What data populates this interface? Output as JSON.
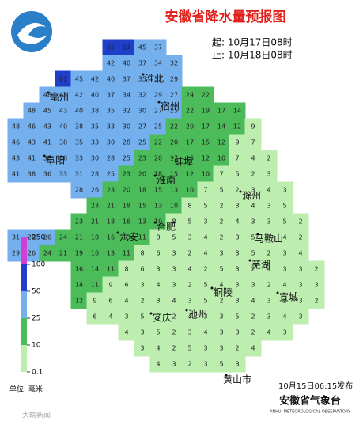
{
  "header": {
    "title": "安徽省降水量预报图",
    "start": "起: 10月17日08时",
    "end": "止: 10月18日08时"
  },
  "legend": {
    "stops": [
      0.1,
      10,
      25,
      50,
      100,
      250
    ],
    "colors": [
      "#bdeeb0",
      "#4cbb5a",
      "#74b0ee",
      "#1f3fc9",
      "#d23fd6"
    ],
    "unit": "单位: 毫米"
  },
  "grid": {
    "rows": [
      [
        null,
        null,
        null,
        null,
        null,
        null,
        65,
        57,
        45,
        37,
        null,
        null,
        null,
        null,
        null,
        null,
        null,
        null,
        null,
        null
      ],
      [
        null,
        null,
        null,
        null,
        null,
        null,
        42,
        40,
        37,
        34,
        32,
        null,
        null,
        null,
        null,
        null,
        null,
        null,
        null,
        null
      ],
      [
        null,
        null,
        null,
        61,
        45,
        42,
        40,
        37,
        35,
        32,
        29,
        null,
        null,
        null,
        null,
        null,
        null,
        null,
        null,
        null
      ],
      [
        null,
        null,
        48,
        45,
        42,
        40,
        37,
        34,
        32,
        29,
        27,
        24,
        22,
        null,
        null,
        null,
        null,
        null,
        null,
        null
      ],
      [
        null,
        48,
        45,
        43,
        40,
        38,
        35,
        32,
        30,
        27,
        25,
        22,
        19,
        17,
        14,
        null,
        null,
        null,
        null,
        null
      ],
      [
        48,
        46,
        43,
        40,
        38,
        35,
        33,
        30,
        27,
        25,
        22,
        20,
        17,
        14,
        12,
        9,
        null,
        null,
        null,
        null
      ],
      [
        46,
        43,
        41,
        38,
        35,
        33,
        30,
        28,
        25,
        22,
        20,
        17,
        15,
        12,
        9,
        7,
        null,
        null,
        null,
        null
      ],
      [
        43,
        41,
        38,
        36,
        33,
        30,
        28,
        25,
        23,
        20,
        17,
        15,
        12,
        10,
        7,
        4,
        2,
        null,
        null,
        null
      ],
      [
        41,
        38,
        36,
        33,
        31,
        28,
        25,
        23,
        20,
        18,
        15,
        12,
        10,
        7,
        5,
        2,
        3,
        null,
        null,
        null
      ],
      [
        null,
        null,
        null,
        null,
        28,
        26,
        23,
        20,
        18,
        15,
        13,
        10,
        7,
        5,
        2,
        3,
        4,
        3,
        null,
        null
      ],
      [
        null,
        null,
        null,
        null,
        null,
        23,
        21,
        18,
        15,
        13,
        10,
        8,
        5,
        2,
        3,
        4,
        3,
        5,
        null,
        null
      ],
      [
        null,
        null,
        null,
        null,
        23,
        21,
        18,
        16,
        13,
        10,
        8,
        5,
        3,
        2,
        4,
        3,
        3,
        5,
        2,
        null
      ],
      [
        31,
        29,
        26,
        24,
        21,
        18,
        16,
        13,
        11,
        8,
        5,
        3,
        4,
        2,
        3,
        5,
        3,
        4,
        2,
        null
      ],
      [
        29,
        26,
        24,
        21,
        19,
        16,
        13,
        11,
        8,
        6,
        3,
        2,
        4,
        3,
        3,
        5,
        2,
        3,
        4,
        null
      ],
      [
        null,
        null,
        null,
        null,
        16,
        14,
        11,
        8,
        6,
        3,
        3,
        4,
        2,
        5,
        3,
        2,
        4,
        3,
        3,
        2
      ],
      [
        null,
        null,
        null,
        null,
        14,
        11,
        9,
        6,
        3,
        4,
        3,
        2,
        5,
        4,
        3,
        3,
        2,
        4,
        3,
        3
      ],
      [
        null,
        null,
        null,
        null,
        12,
        9,
        6,
        4,
        2,
        3,
        4,
        3,
        5,
        2,
        3,
        4,
        3,
        2,
        3,
        2
      ],
      [
        null,
        null,
        null,
        null,
        null,
        6,
        4,
        3,
        5,
        3,
        2,
        4,
        3,
        3,
        5,
        2,
        3,
        4,
        3,
        null
      ],
      [
        null,
        null,
        null,
        null,
        null,
        null,
        null,
        4,
        3,
        5,
        2,
        3,
        4,
        3,
        3,
        2,
        4,
        3,
        null,
        null
      ],
      [
        null,
        null,
        null,
        null,
        null,
        null,
        null,
        null,
        3,
        4,
        2,
        5,
        3,
        3,
        2,
        4,
        null,
        null,
        null,
        null
      ],
      [
        null,
        null,
        null,
        null,
        null,
        null,
        null,
        null,
        null,
        4,
        3,
        2,
        3,
        5,
        3,
        null,
        null,
        null,
        null,
        null
      ]
    ]
  },
  "cities": [
    "淮北",
    "宿州",
    "亳州",
    "阜阳",
    "蚌埠",
    "淮南",
    "滁州",
    "六安",
    "合肥",
    "马鞍山",
    "芜湖",
    "铜陵",
    "宣城",
    "安庆",
    "池州",
    "黄山市"
  ],
  "footer": {
    "published": "10月15日06:15发布",
    "agency": "安徽省气象台",
    "agency_en": "ANHUI METEOROLOGICAL OBSERVATORY",
    "watermark": "大皖新闻"
  }
}
